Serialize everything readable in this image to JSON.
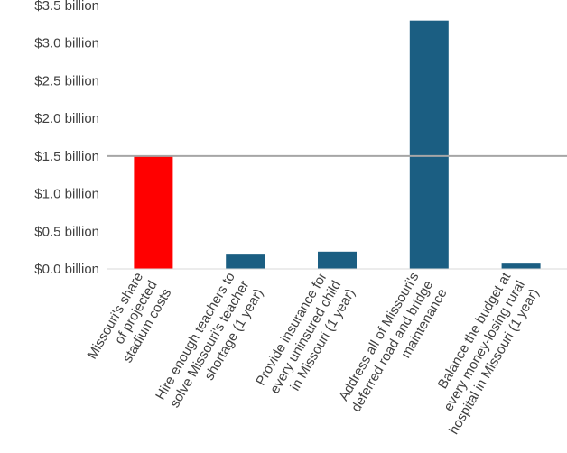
{
  "chart_data": {
    "type": "bar",
    "title": "",
    "xlabel": "",
    "ylabel": "",
    "ylim": [
      0,
      3.5
    ],
    "yticks": [
      0,
      0.5,
      1.0,
      1.5,
      2.0,
      2.5,
      3.0,
      3.5
    ],
    "ytick_labels": [
      "$0.0 billion",
      "$0.5 billion",
      "$1.0 billion",
      "$1.5 billion",
      "$2.0 billion",
      "$2.5 billion",
      "$3.0 billion",
      "$3.5 billion"
    ],
    "grid": false,
    "legend": "none",
    "reference_line": {
      "value": 1.5,
      "color": "#a6a6a6"
    },
    "categories": [
      [
        "Missouri's share",
        "of projected",
        "stadium costs"
      ],
      [
        "Hire enough teachers to",
        "solve Missouri's teacher",
        "shortage (1 year)"
      ],
      [
        "Provide insurance for",
        "every uninsured child",
        "in Missouri (1 year)"
      ],
      [
        "Address all of Missouri's",
        "deferred road and bridge",
        "maintenance"
      ],
      [
        "Balance the budget at",
        "every money-losing rural",
        "hospital in Missouri (1 year)"
      ]
    ],
    "values": [
      1.5,
      0.19,
      0.23,
      3.3,
      0.07
    ],
    "colors": [
      "#ff0000",
      "#1b5e82",
      "#1b5e82",
      "#1b5e82",
      "#1b5e82"
    ]
  }
}
